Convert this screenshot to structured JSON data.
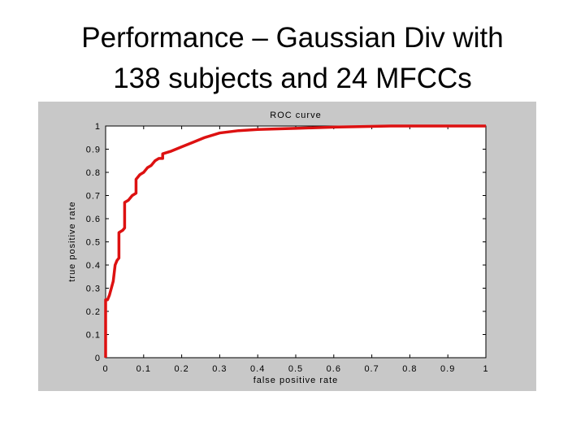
{
  "slide": {
    "title_lines": [
      "Performance – Gaussian Div with",
      "138 subjects and 24 MFCCs"
    ]
  },
  "chart_data": {
    "type": "line",
    "title": "ROC curve",
    "x_label": "false positive rate",
    "y_label": "true positive rate",
    "x": [
      0,
      0,
      0.005,
      0.01,
      0.015,
      0.02,
      0.025,
      0.03,
      0.035,
      0.035,
      0.045,
      0.05,
      0.05,
      0.06,
      0.07,
      0.08,
      0.08,
      0.09,
      0.1,
      0.11,
      0.12,
      0.13,
      0.14,
      0.15,
      0.15,
      0.17,
      0.2,
      0.23,
      0.26,
      0.3,
      0.35,
      0.4,
      0.5,
      0.6,
      0.75,
      0.8,
      1
    ],
    "series": [
      {
        "name": "ROC",
        "color": "#dd1111",
        "values": [
          0,
          0.25,
          0.25,
          0.27,
          0.3,
          0.33,
          0.4,
          0.42,
          0.43,
          0.54,
          0.55,
          0.56,
          0.67,
          0.68,
          0.7,
          0.71,
          0.77,
          0.79,
          0.8,
          0.82,
          0.83,
          0.85,
          0.86,
          0.86,
          0.88,
          0.89,
          0.91,
          0.93,
          0.95,
          0.97,
          0.98,
          0.985,
          0.99,
          0.995,
          1,
          1,
          1
        ]
      }
    ],
    "xlim": [
      0,
      1
    ],
    "ylim": [
      0,
      1
    ],
    "xticks": [
      0,
      0.1,
      0.2,
      0.3,
      0.4,
      0.5,
      0.6,
      0.7,
      0.8,
      0.9,
      1
    ],
    "yticks": [
      0,
      0.1,
      0.2,
      0.3,
      0.4,
      0.5,
      0.6,
      0.7,
      0.8,
      0.9,
      1
    ],
    "grid": false
  }
}
